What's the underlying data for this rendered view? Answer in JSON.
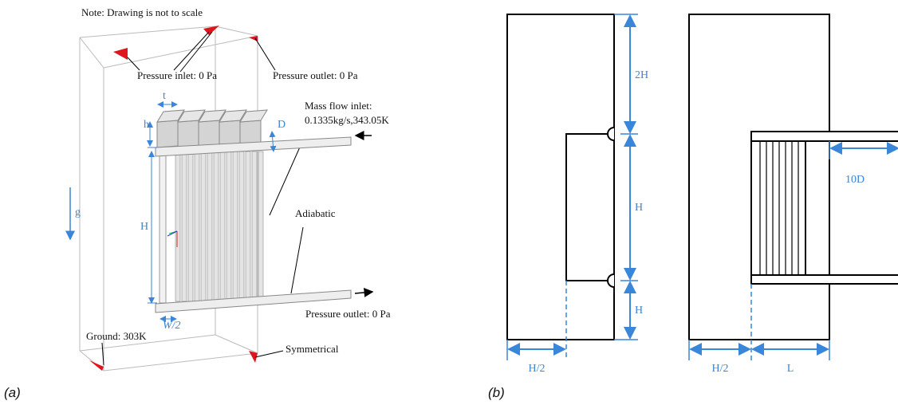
{
  "panel_a": {
    "caption": "(a)",
    "note": "Note: Drawing is not to scale",
    "pressure_inlet": "Pressure inlet: 0 Pa",
    "pressure_outlet_top": "Pressure outlet: 0 Pa",
    "mass_flow_inlet": "Mass flow inlet:",
    "mass_flow_value": "0.1335kg/s,343.05K",
    "adiabatic": "Adiabatic",
    "pressure_outlet_bottom": "Pressure outlet: 0 Pa",
    "ground": "Ground: 303K",
    "symmetrical": "Symmetrical",
    "dims": {
      "t": "t",
      "h": "h",
      "D": "D",
      "H": "H",
      "W2": "W/2",
      "g": "g"
    }
  },
  "panel_b": {
    "caption": "(b)",
    "dims": {
      "top_2H": "2H",
      "mid_H": "H",
      "low_H": "H",
      "left_H2": "H/2",
      "right_H2": "H/2",
      "L": "L",
      "D10": "10D"
    }
  }
}
